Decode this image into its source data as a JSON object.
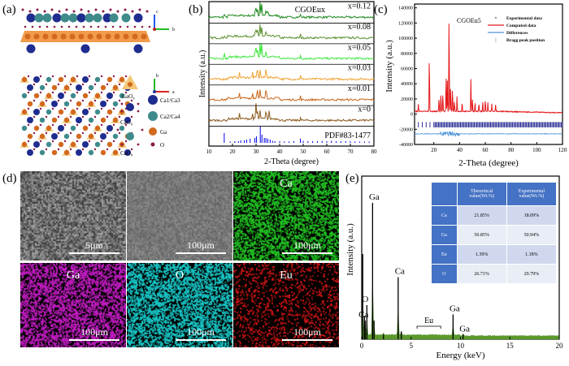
{
  "panels": {
    "a": {
      "label": "(a)",
      "axes_top": {
        "c": "c",
        "b": "b"
      },
      "axes_bottom": {
        "b": "b",
        "a": "a"
      },
      "polyhedra": [
        "GaO₄",
        "CaO₆",
        "CaO₈"
      ],
      "legend": [
        {
          "name": "Ca1/Ca3",
          "color": "#1f2d8f"
        },
        {
          "name": "Ca2/Ca4",
          "color": "#3f8b8c"
        },
        {
          "name": "Ga",
          "color": "#d2691e"
        },
        {
          "name": "O",
          "color": "#8b1a4a"
        }
      ]
    },
    "b": {
      "label": "(b)",
      "title": "CGOEux",
      "reference": "PDF#83-1477"
    },
    "c": {
      "label": "(c)",
      "sample": "CGOEu5",
      "legend": [
        {
          "name": "Experimental data",
          "symbol": "x",
          "color": "#000000"
        },
        {
          "name": "Computed data",
          "symbol": "line",
          "color": "#e41a1c"
        },
        {
          "name": "Differences",
          "symbol": "line",
          "color": "#4a90d9"
        },
        {
          "name": "Bragg peak position",
          "symbol": "bar",
          "color": "#1a1f8c"
        }
      ]
    },
    "d": {
      "label": "(d)",
      "tiles": [
        {
          "label": "",
          "scale": "5μm",
          "kind": "sem-high"
        },
        {
          "label": "",
          "scale": "100μm",
          "kind": "sem-low"
        },
        {
          "label": "Ca",
          "scale": "100μm",
          "kind": "map",
          "color": "#22c322"
        },
        {
          "label": "Ga",
          "scale": "100μm",
          "kind": "map",
          "color": "#c21cc2"
        },
        {
          "label": "O",
          "scale": "100μm",
          "kind": "map",
          "color": "#18c8c8"
        },
        {
          "label": "Eu",
          "scale": "100μm",
          "kind": "map",
          "color": "#d01515"
        }
      ]
    },
    "e": {
      "label": "(e)",
      "table": {
        "headers": [
          "",
          "Theoretical value(Wt.%)",
          "Experimental value(Wt.%)"
        ],
        "rows": [
          [
            "Ca",
            "21.85%",
            "18.09%"
          ],
          [
            "Ga",
            "50.85%",
            "50.94%"
          ],
          [
            "Eu",
            "1.39%",
            "1.18%"
          ],
          [
            "O",
            "26.71%",
            "29.79%"
          ]
        ]
      }
    }
  },
  "chart_data": [
    {
      "id": "b",
      "type": "line",
      "title": "",
      "xlabel": "2-Theta (degree)",
      "ylabel": "Intensity (a.u.)",
      "xlim": [
        10,
        80
      ],
      "xticks": [
        10,
        20,
        30,
        40,
        50,
        60,
        70,
        80
      ],
      "series": [
        {
          "name": "x=0.12",
          "color": "#1f8a1f",
          "peaks": [
            [
              16.5,
              0.3
            ],
            [
              29.8,
              0.9
            ],
            [
              30.5,
              0.7
            ],
            [
              31.8,
              1.0
            ],
            [
              32.4,
              0.6
            ],
            [
              34.3,
              0.5
            ],
            [
              35.0,
              0.4
            ],
            [
              48.8,
              0.2
            ]
          ]
        },
        {
          "name": "x=0.08",
          "color": "#5a8f2e",
          "peaks": [
            [
              16.5,
              0.25
            ],
            [
              29.8,
              0.7
            ],
            [
              30.5,
              0.6
            ],
            [
              31.8,
              0.9
            ],
            [
              32.4,
              0.5
            ],
            [
              34.3,
              0.45
            ],
            [
              48.8,
              0.2
            ]
          ]
        },
        {
          "name": "x=0.05",
          "color": "#3ee63e",
          "peaks": [
            [
              16.5,
              0.55
            ],
            [
              29.8,
              0.9
            ],
            [
              30.5,
              0.8
            ],
            [
              31.8,
              1.0
            ],
            [
              32.4,
              0.7
            ],
            [
              34.3,
              0.5
            ],
            [
              48.8,
              0.2
            ]
          ]
        },
        {
          "name": "x=0.03",
          "color": "#f0a030",
          "peaks": [
            [
              23.0,
              0.25
            ],
            [
              28.5,
              0.3
            ],
            [
              30.5,
              0.9
            ],
            [
              31.8,
              0.6
            ],
            [
              34.3,
              0.85
            ],
            [
              48.8,
              0.2
            ]
          ]
        },
        {
          "name": "x=0.01",
          "color": "#c8661a",
          "peaks": [
            [
              23.0,
              0.3
            ],
            [
              28.5,
              0.3
            ],
            [
              30.5,
              1.0
            ],
            [
              31.8,
              0.6
            ],
            [
              34.3,
              0.9
            ],
            [
              48.8,
              0.2
            ]
          ]
        },
        {
          "name": "x=0",
          "color": "#8b5a1e",
          "peaks": [
            [
              23.0,
              0.3
            ],
            [
              28.5,
              0.3
            ],
            [
              30.0,
              0.9
            ],
            [
              30.5,
              0.8
            ],
            [
              31.8,
              0.6
            ],
            [
              34.3,
              0.7
            ],
            [
              35.5,
              0.5
            ],
            [
              48.8,
              0.2
            ]
          ]
        }
      ],
      "reference": {
        "name": "PDF#83-1477",
        "color": "#0000ee",
        "sticks": [
          [
            16.5,
            0.6
          ],
          [
            19,
            0.08
          ],
          [
            21,
            0.1
          ],
          [
            22.5,
            0.1
          ],
          [
            23.5,
            0.15
          ],
          [
            25,
            0.15
          ],
          [
            26,
            0.2
          ],
          [
            27.5,
            0.25
          ],
          [
            29.5,
            0.3
          ],
          [
            30.2,
            0.4
          ],
          [
            31.8,
            1.0
          ],
          [
            32.5,
            0.5
          ],
          [
            33.5,
            0.3
          ],
          [
            34.2,
            0.3
          ],
          [
            35,
            0.25
          ],
          [
            36,
            0.2
          ],
          [
            37,
            0.12
          ],
          [
            38,
            0.1
          ],
          [
            40,
            0.1
          ],
          [
            42,
            0.08
          ],
          [
            44,
            0.08
          ],
          [
            46,
            0.1
          ],
          [
            48.8,
            0.25
          ],
          [
            50,
            0.12
          ],
          [
            52,
            0.1
          ],
          [
            54,
            0.1
          ],
          [
            56,
            0.1
          ],
          [
            58,
            0.12
          ],
          [
            60,
            0.1
          ],
          [
            62,
            0.12
          ],
          [
            64,
            0.1
          ],
          [
            66,
            0.1
          ],
          [
            68,
            0.1
          ],
          [
            70,
            0.1
          ],
          [
            72,
            0.08
          ],
          [
            74,
            0.08
          ],
          [
            76,
            0.08
          ],
          [
            78,
            0.08
          ]
        ]
      }
    },
    {
      "id": "c",
      "type": "line",
      "title": "CGOEu5",
      "xlabel": "2-Theta (degree)",
      "ylabel": "Intensity (a.u.)",
      "xlim": [
        5,
        120
      ],
      "ylim": [
        -40000,
        145000
      ],
      "xticks": [
        20,
        40,
        60,
        80,
        100,
        120
      ],
      "yticks": [
        -40000,
        -20000,
        0,
        20000,
        40000,
        60000,
        80000,
        100000,
        120000,
        140000
      ],
      "peaks": [
        [
          8,
          10000
        ],
        [
          16.5,
          75000
        ],
        [
          24,
          18000
        ],
        [
          25.5,
          25000
        ],
        [
          27,
          25000
        ],
        [
          29.5,
          50000
        ],
        [
          30.5,
          40000
        ],
        [
          31.8,
          135000
        ],
        [
          33,
          35000
        ],
        [
          34.5,
          32000
        ],
        [
          36,
          15000
        ],
        [
          38,
          20000
        ],
        [
          42,
          12000
        ],
        [
          48.8,
          42000
        ],
        [
          50,
          15000
        ],
        [
          52,
          12000
        ],
        [
          55,
          10000
        ],
        [
          58,
          14000
        ],
        [
          60,
          16000
        ],
        [
          62,
          12000
        ],
        [
          65,
          10000
        ],
        [
          68,
          9000
        ]
      ],
      "background": 3000,
      "bragg_offset": -14000,
      "difference_offset": -26000
    },
    {
      "id": "e",
      "type": "line",
      "title": "",
      "xlabel": "Energy (keV)",
      "ylabel": "Intensity (a.u.)",
      "xlim": [
        0,
        20
      ],
      "xticks": [
        0,
        5,
        10,
        15,
        20
      ],
      "peaks": [
        {
          "x": 0.1,
          "y": 0.55,
          "label": ""
        },
        {
          "x": 0.28,
          "y": 0.15,
          "label": ""
        },
        {
          "x": 0.52,
          "y": 0.22,
          "label": "O"
        },
        {
          "x": 0.35,
          "y": 0.12,
          "label": "Ca"
        },
        {
          "x": 1.1,
          "y": 0.88,
          "label": "Ga"
        },
        {
          "x": 1.25,
          "y": 0.12,
          "label": ""
        },
        {
          "x": 2.2,
          "y": 0.03,
          "label": ""
        },
        {
          "x": 3.69,
          "y": 0.4,
          "label": "Ca"
        },
        {
          "x": 4.01,
          "y": 0.05,
          "label": ""
        },
        {
          "x": 9.25,
          "y": 0.16,
          "label": "Ga"
        },
        {
          "x": 10.26,
          "y": 0.03,
          "label": "Ga"
        }
      ],
      "annotations": [
        {
          "text": "Eu",
          "x_range": [
            5.6,
            8.0
          ]
        }
      ]
    }
  ]
}
